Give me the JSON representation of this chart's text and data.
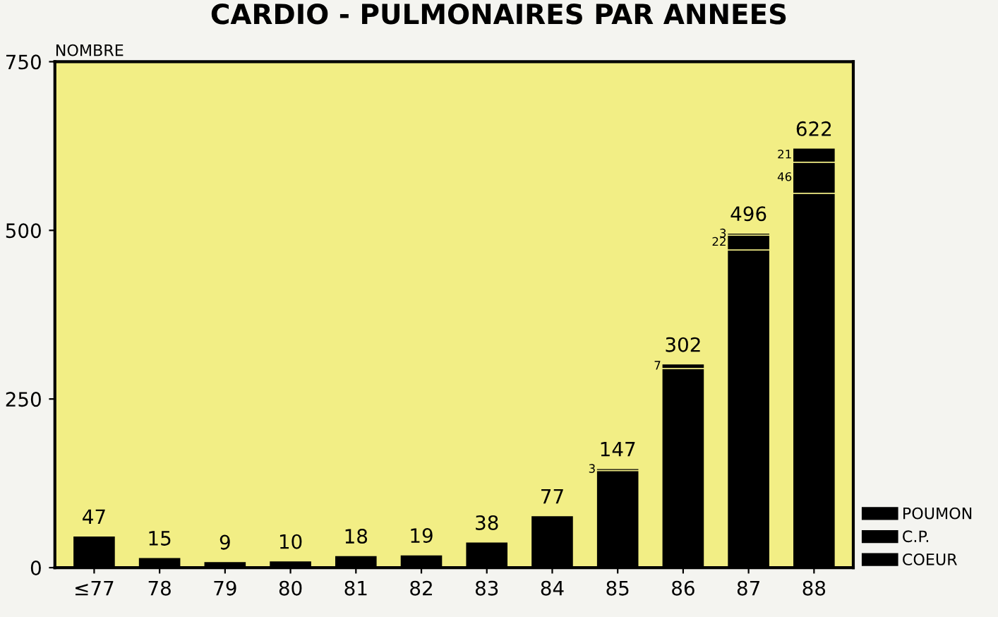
{
  "chart_data": {
    "type": "bar",
    "title": "CARDIO - PULMONAIRES PAR ANNEES",
    "ylabel": "NOMBRE",
    "categories": [
      "≤77",
      "78",
      "79",
      "80",
      "81",
      "82",
      "83",
      "84",
      "85",
      "86",
      "87",
      "88"
    ],
    "stacked": true,
    "series": [
      {
        "name": "COEUR",
        "color": "#000000",
        "values": [
          47,
          15,
          9,
          10,
          18,
          19,
          38,
          77,
          144,
          295,
          471,
          555
        ]
      },
      {
        "name": "C.P.",
        "color": "#000000",
        "values": [
          null,
          null,
          null,
          null,
          null,
          null,
          null,
          null,
          3,
          7,
          22,
          46
        ],
        "value_labels": [
          null,
          null,
          null,
          null,
          null,
          null,
          null,
          null,
          "3",
          "7",
          "22",
          "46"
        ]
      },
      {
        "name": "POUMON",
        "color": "#000000",
        "values": [
          null,
          null,
          null,
          null,
          null,
          null,
          null,
          null,
          null,
          null,
          3,
          21
        ],
        "value_labels": [
          null,
          null,
          null,
          null,
          null,
          null,
          null,
          null,
          null,
          null,
          "3",
          "21"
        ]
      }
    ],
    "totals": [
      "47",
      "15",
      "9",
      "10",
      "18",
      "19",
      "38",
      "77",
      "147",
      "302",
      "496",
      "622"
    ],
    "ylim": [
      0,
      750
    ],
    "yticks": [
      0,
      250,
      500,
      750
    ],
    "grid": false,
    "legend": "bottom right"
  }
}
